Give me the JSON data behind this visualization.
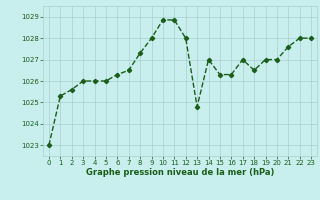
{
  "x": [
    0,
    1,
    2,
    3,
    4,
    5,
    6,
    7,
    8,
    9,
    10,
    11,
    12,
    13,
    14,
    15,
    16,
    17,
    18,
    19,
    20,
    21,
    22,
    23
  ],
  "y": [
    1023.0,
    1025.3,
    1025.6,
    1026.0,
    1026.0,
    1026.0,
    1026.3,
    1026.5,
    1027.3,
    1028.0,
    1028.85,
    1028.85,
    1028.0,
    1024.8,
    1027.0,
    1026.3,
    1026.3,
    1027.0,
    1026.5,
    1027.0,
    1027.0,
    1027.6,
    1028.0,
    1028.0
  ],
  "ylim": [
    1022.5,
    1029.5
  ],
  "yticks": [
    1023,
    1024,
    1025,
    1026,
    1027,
    1028,
    1029
  ],
  "xlim": [
    -0.5,
    23.5
  ],
  "xticks": [
    0,
    1,
    2,
    3,
    4,
    5,
    6,
    7,
    8,
    9,
    10,
    11,
    12,
    13,
    14,
    15,
    16,
    17,
    18,
    19,
    20,
    21,
    22,
    23
  ],
  "line_color": "#1a5e1a",
  "marker": "D",
  "marker_size": 2.2,
  "bg_color": "#c8eeee",
  "grid_color": "#a8d0d0",
  "xlabel": "Graphe pression niveau de la mer (hPa)",
  "xlabel_color": "#1a5e1a",
  "tick_color": "#1a5e1a",
  "line_width": 1.0,
  "tick_fontsize": 5.0,
  "xlabel_fontsize": 6.0
}
